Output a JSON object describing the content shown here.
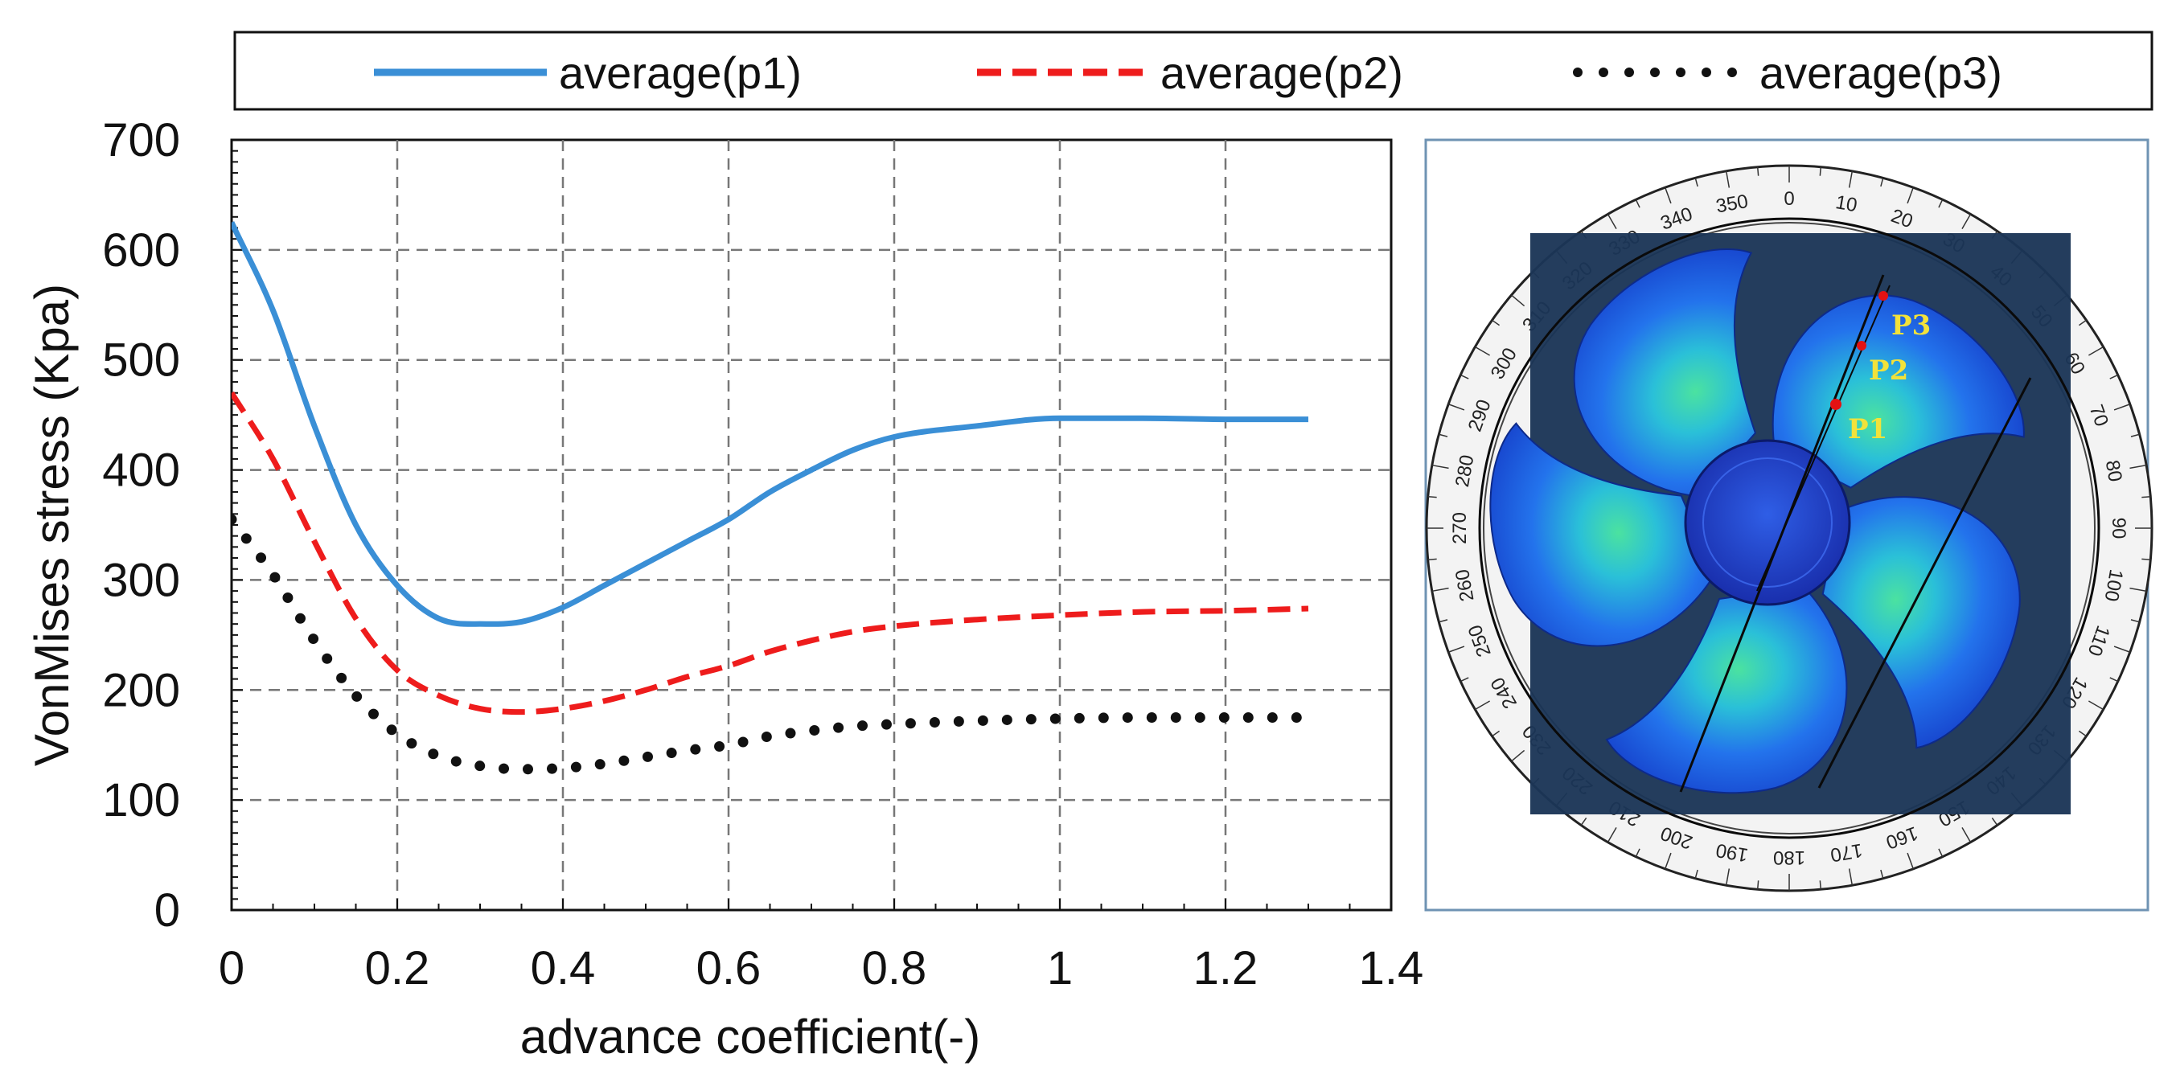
{
  "chart_data": {
    "type": "line",
    "title": "",
    "xlabel": "advance coefficient(-)",
    "ylabel": "VonMises stress (Kpa)",
    "xlim": [
      0,
      1.4
    ],
    "ylim": [
      0,
      700
    ],
    "x_ticks": [
      "0",
      "0.2",
      "0.4",
      "0.6",
      "0.8",
      "1",
      "1.2",
      "1.4"
    ],
    "y_ticks": [
      "0",
      "100",
      "200",
      "300",
      "400",
      "500",
      "600",
      "700"
    ],
    "grid": true,
    "legend_position": "top",
    "series": [
      {
        "name": "average(p1)",
        "style": "solid",
        "color": "#3a8fd6",
        "x": [
          0,
          0.05,
          0.1,
          0.15,
          0.2,
          0.25,
          0.3,
          0.35,
          0.4,
          0.45,
          0.5,
          0.55,
          0.6,
          0.65,
          0.7,
          0.75,
          0.8,
          0.9,
          1.0,
          1.1,
          1.2,
          1.3
        ],
        "y": [
          625,
          545,
          440,
          350,
          295,
          265,
          260,
          262,
          275,
          295,
          315,
          335,
          355,
          380,
          400,
          418,
          430,
          440,
          447,
          447,
          446,
          446
        ]
      },
      {
        "name": "average(p2)",
        "style": "dashed",
        "color": "#ee1c1c",
        "x": [
          0,
          0.05,
          0.1,
          0.15,
          0.2,
          0.25,
          0.3,
          0.35,
          0.4,
          0.45,
          0.5,
          0.55,
          0.6,
          0.65,
          0.7,
          0.75,
          0.8,
          0.9,
          1.0,
          1.1,
          1.2,
          1.3
        ],
        "y": [
          470,
          410,
          335,
          265,
          218,
          195,
          183,
          180,
          183,
          190,
          200,
          212,
          222,
          235,
          245,
          253,
          258,
          264,
          268,
          271,
          272,
          274
        ]
      },
      {
        "name": "average(p3)",
        "style": "dotted",
        "color": "#111111",
        "x": [
          0,
          0.05,
          0.1,
          0.15,
          0.2,
          0.25,
          0.3,
          0.35,
          0.4,
          0.45,
          0.5,
          0.55,
          0.6,
          0.65,
          0.7,
          0.75,
          0.8,
          0.9,
          1.0,
          1.1,
          1.2,
          1.3
        ],
        "y": [
          355,
          305,
          245,
          195,
          160,
          140,
          131,
          128,
          129,
          133,
          139,
          145,
          150,
          158,
          163,
          167,
          169,
          172,
          174,
          175,
          175,
          175
        ]
      }
    ]
  },
  "inset": {
    "point_labels": [
      "P1",
      "P2",
      "P3"
    ],
    "colors": {
      "frame": "#6f93b3",
      "background": "#1b3556",
      "blade": "#1f5fe0",
      "hub": "#2339c9",
      "marker": "#e31212",
      "label": "#f2e23a"
    }
  }
}
